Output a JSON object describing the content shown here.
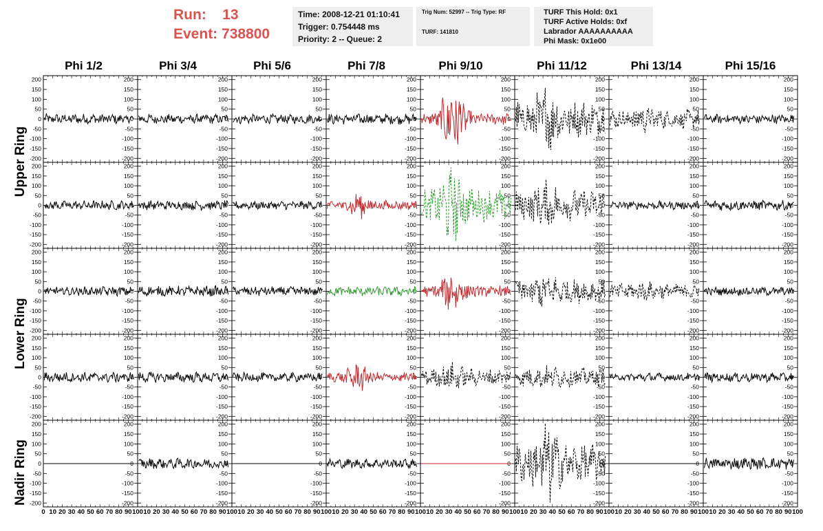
{
  "header": {
    "run_label": "Run:",
    "run_value": "13",
    "event_label": "Event:",
    "event_value": "738800"
  },
  "info_box_1": {
    "time": "Time: 2008-12-21 01:10:41",
    "trigger": "Trigger: 0.754448 ms",
    "priority": "Priority: 2 -- Queue: 2"
  },
  "info_box_2": {
    "trig": "Trig Num: 52997 -- Trig Type: RF",
    "turf": "TURF: 141810"
  },
  "info_box_3": {
    "hold": "TURF This Hold: 0x1",
    "active": "TURF Active Holds: 0xf",
    "labrador": "Labrador AAAAAAAAAA",
    "mask": "Phi Mask: 0x1e00"
  },
  "columns": [
    "Phi 1/2",
    "Phi 3/4",
    "Phi 5/6",
    "Phi 7/8",
    "Phi 9/10",
    "Phi 11/12",
    "Phi 13/14",
    "Phi 15/16"
  ],
  "ring_labels": {
    "upper": "Upper Ring",
    "lower": "Lower Ring",
    "nadir": "Nadir Ring"
  },
  "colors": {
    "black": "#000000",
    "red": "#c0282d",
    "green": "#2e9a2e",
    "header_red": "#d9534f"
  },
  "chart_data": {
    "type": "line",
    "xlim": [
      0,
      100
    ],
    "ylim": [
      -220,
      220
    ],
    "y_ticks": [
      -200,
      -150,
      -100,
      -50,
      0,
      50,
      100,
      150,
      200
    ],
    "x_tick_labels_first": [
      "0",
      "10",
      "20",
      "30",
      "40",
      "50",
      "60",
      "70",
      "80",
      "90",
      "100"
    ],
    "x_tick_labels_rest": [
      "10",
      "20",
      "30",
      "40",
      "50",
      "60",
      "70",
      "80",
      "90",
      "100"
    ],
    "grid": false,
    "panels": [
      [
        {
          "style": "solid",
          "color": "black",
          "amp": 22,
          "burst": 0
        },
        {
          "style": "solid",
          "color": "black",
          "amp": 20,
          "burst": 0
        },
        {
          "style": "solid",
          "color": "black",
          "amp": 20,
          "burst": 0
        },
        {
          "style": "solid",
          "color": "black",
          "amp": 22,
          "burst": 0
        },
        {
          "style": "solid",
          "color": "red",
          "amp": 25,
          "burst": 140
        },
        {
          "style": "dashed",
          "color": "black",
          "amp": 75,
          "burst": 80
        },
        {
          "style": "dashed",
          "color": "black",
          "amp": 40,
          "burst": 20
        },
        {
          "style": "solid",
          "color": "black",
          "amp": 20,
          "burst": 0
        }
      ],
      [
        {
          "style": "solid",
          "color": "black",
          "amp": 20,
          "burst": 0
        },
        {
          "style": "solid",
          "color": "black",
          "amp": 20,
          "burst": 0
        },
        {
          "style": "solid",
          "color": "black",
          "amp": 18,
          "burst": 0
        },
        {
          "style": "solid",
          "color": "red",
          "amp": 20,
          "burst": 40
        },
        {
          "style": "dashed",
          "color": "green",
          "amp": 70,
          "burst": 100
        },
        {
          "style": "dashed",
          "color": "black",
          "amp": 65,
          "burst": 40
        },
        {
          "style": "solid",
          "color": "black",
          "amp": 18,
          "burst": 0
        },
        {
          "style": "solid",
          "color": "black",
          "amp": 22,
          "burst": 0
        }
      ],
      [
        {
          "style": "solid",
          "color": "black",
          "amp": 20,
          "burst": 0
        },
        {
          "style": "solid",
          "color": "black",
          "amp": 22,
          "burst": 0
        },
        {
          "style": "solid",
          "color": "black",
          "amp": 20,
          "burst": 0
        },
        {
          "style": "solid",
          "color": "green",
          "amp": 20,
          "burst": 0
        },
        {
          "style": "solid",
          "color": "red",
          "amp": 25,
          "burst": 70
        },
        {
          "style": "dashed",
          "color": "black",
          "amp": 50,
          "burst": 30
        },
        {
          "style": "dashed",
          "color": "black",
          "amp": 35,
          "burst": 10
        },
        {
          "style": "solid",
          "color": "black",
          "amp": 18,
          "burst": 0
        }
      ],
      [
        {
          "style": "solid",
          "color": "black",
          "amp": 22,
          "burst": 0
        },
        {
          "style": "solid",
          "color": "black",
          "amp": 22,
          "burst": 0
        },
        {
          "style": "solid",
          "color": "black",
          "amp": 20,
          "burst": 0
        },
        {
          "style": "solid",
          "color": "red",
          "amp": 20,
          "burst": 45
        },
        {
          "style": "dashed",
          "color": "black",
          "amp": 35,
          "burst": 30
        },
        {
          "style": "dashed",
          "color": "black",
          "amp": 40,
          "burst": 10
        },
        {
          "style": "solid",
          "color": "black",
          "amp": 18,
          "burst": 0
        },
        {
          "style": "solid",
          "color": "black",
          "amp": 20,
          "burst": 0
        }
      ],
      [
        {
          "style": "flat",
          "color": "black",
          "amp": 0,
          "burst": 0
        },
        {
          "style": "solid",
          "color": "black",
          "amp": 22,
          "burst": 0
        },
        {
          "style": "flat",
          "color": "black",
          "amp": 0,
          "burst": 0
        },
        {
          "style": "solid",
          "color": "black",
          "amp": 20,
          "burst": 0
        },
        {
          "style": "flat",
          "color": "red",
          "amp": 0,
          "burst": 0
        },
        {
          "style": "dashed",
          "color": "black",
          "amp": 80,
          "burst": 100
        },
        {
          "style": "flat",
          "color": "black",
          "amp": 0,
          "burst": 0
        },
        {
          "style": "solid",
          "color": "black",
          "amp": 25,
          "burst": 0
        }
      ]
    ]
  }
}
